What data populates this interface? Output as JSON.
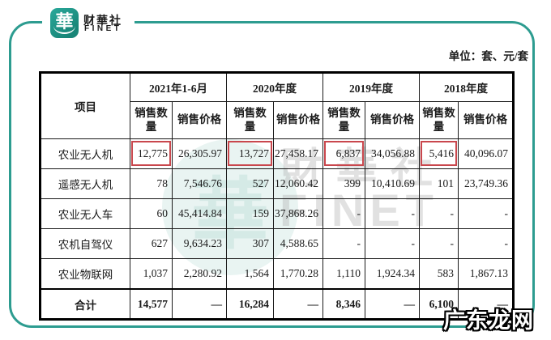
{
  "brand": {
    "logo_char": "華",
    "name_cn": "财華社",
    "name_en": "FINET"
  },
  "unit_note": "单位：套、元/套",
  "table": {
    "item_header": "项目",
    "year_groups": [
      "2021年1-6月",
      "2020年度",
      "2019年度",
      "2018年度"
    ],
    "sub_quantity": "销售数量",
    "sub_price": "销售价格",
    "rows": [
      {
        "label": "农业无人机",
        "values": [
          "12,775",
          "26,305.97",
          "13,727",
          "27,458.17",
          "6,837",
          "34,056.88",
          "5,416",
          "40,096.07"
        ],
        "highlight": [
          0,
          2,
          4,
          6
        ]
      },
      {
        "label": "遥感无人机",
        "values": [
          "78",
          "7,546.76",
          "527",
          "12,060.42",
          "399",
          "10,410.69",
          "101",
          "23,749.36"
        ]
      },
      {
        "label": "农业无人车",
        "values": [
          "60",
          "45,414.84",
          "159",
          "37,868.26",
          "-",
          "-",
          "-",
          "-"
        ]
      },
      {
        "label": "农机自驾仪",
        "values": [
          "627",
          "9,634.23",
          "307",
          "4,588.65",
          "-",
          "-",
          "-",
          "-"
        ]
      },
      {
        "label": "农业物联网",
        "values": [
          "1,037",
          "2,280.92",
          "1,564",
          "1,770.28",
          "1,110",
          "1,924.34",
          "583",
          "1,867.13"
        ]
      },
      {
        "label": "合计",
        "values": [
          "14,577",
          "—",
          "16,284",
          "—",
          "8,346",
          "—",
          "6,100",
          "—"
        ],
        "total": true
      }
    ]
  },
  "watermarks": {
    "center_cn": "財華社",
    "center_en": "FINET",
    "corner": "广东龙网"
  },
  "colors": {
    "teal": "#2D9C90",
    "highlight_red": "#C9474D",
    "table_border": "#000000"
  }
}
